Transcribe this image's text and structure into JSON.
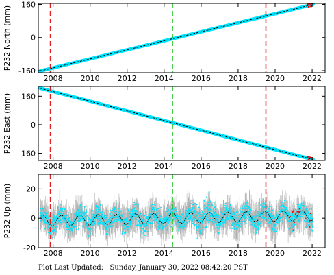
{
  "footer": {
    "label": "Plot Last Updated:",
    "timestamp": "Sunday, January 30, 2022 08:42:20 PST"
  },
  "colors": {
    "data": "#00e5ff",
    "error_bars": "#b0b0b0",
    "model": "#000000",
    "outliers": "#e01010",
    "red_line": "#e02020",
    "green_line": "#20c020"
  },
  "chart_data": [
    {
      "type": "scatter",
      "ylabel": "P232 North (mm)",
      "xlim": [
        2007.2,
        2022.7
      ],
      "ylim": [
        -170,
        165
      ],
      "yticks": [
        -160,
        0,
        160
      ],
      "xticks": [
        2008,
        2010,
        2012,
        2014,
        2016,
        2018,
        2020,
        2022
      ],
      "series": [
        {
          "kind": "linear-trend",
          "x": [
            2007.3,
            2022.05
          ],
          "y": [
            -162,
            160
          ]
        }
      ],
      "vlines": [
        {
          "x": 2007.85,
          "color": "red"
        },
        {
          "x": 2014.45,
          "color": "green"
        },
        {
          "x": 2019.5,
          "color": "red"
        }
      ]
    },
    {
      "type": "scatter",
      "ylabel": "P232 East (mm)",
      "xlim": [
        2007.2,
        2022.7
      ],
      "ylim": [
        -200,
        215
      ],
      "yticks": [
        -160,
        0,
        160
      ],
      "xticks": [
        2008,
        2010,
        2012,
        2014,
        2016,
        2018,
        2020,
        2022
      ],
      "series": [
        {
          "kind": "linear-trend",
          "x": [
            2007.3,
            2022.05
          ],
          "y": [
            205,
            -195
          ]
        }
      ],
      "vlines": [
        {
          "x": 2007.85,
          "color": "red"
        },
        {
          "x": 2014.45,
          "color": "green"
        },
        {
          "x": 2019.5,
          "color": "red"
        }
      ]
    },
    {
      "type": "scatter",
      "ylabel": "P232 Up (mm)",
      "xlim": [
        2007.2,
        2022.7
      ],
      "ylim": [
        -20,
        30
      ],
      "yticks": [
        -20,
        0,
        20
      ],
      "xticks": [
        2008,
        2010,
        2012,
        2014,
        2016,
        2018,
        2020,
        2022
      ],
      "series": [
        {
          "kind": "seasonal",
          "x": [
            2007.3,
            2022.05
          ],
          "mean": 0,
          "amplitude": 3.5,
          "period_years": 1
        }
      ],
      "vlines": [
        {
          "x": 2007.85,
          "color": "red"
        },
        {
          "x": 2014.45,
          "color": "green"
        },
        {
          "x": 2019.5,
          "color": "red"
        }
      ]
    }
  ]
}
